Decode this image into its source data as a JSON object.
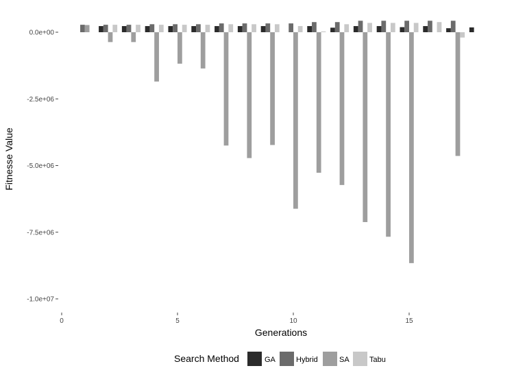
{
  "chart_data": {
    "type": "bar",
    "xlabel": "Generations",
    "ylabel": "Fitnesse Value",
    "xlim": [
      0,
      18
    ],
    "ylim": [
      -10400000,
      600000
    ],
    "x_ticks": [
      0,
      5,
      10,
      15
    ],
    "x_tick_labels": [
      "0",
      "5",
      "10",
      "15"
    ],
    "y_ticks": [
      0,
      -2500000,
      -5000000,
      -7500000,
      -10000000
    ],
    "y_tick_labels": [
      "0.0e+00",
      "-2.5e+06",
      "-5.0e+06",
      "-7.5e+06",
      "-1.0e+07"
    ],
    "grid": false,
    "legend": {
      "title": "Search Method",
      "placement": "bottom",
      "entries": [
        "GA",
        "Hybrid",
        "SA",
        "Tabu"
      ]
    },
    "colors": {
      "GA": "#2b2b2b",
      "Hybrid": "#6b6b6b",
      "SA": "#9e9e9e",
      "Tabu": "#c8c8c8"
    },
    "series": [
      {
        "name": "GA",
        "offset": -0.3,
        "x": [
          1,
          2,
          3,
          4,
          5,
          6,
          7,
          8,
          9,
          10,
          11,
          12,
          13,
          14,
          15,
          16,
          17,
          18
        ],
        "values": [
          null,
          230000,
          230000,
          230000,
          230000,
          230000,
          230000,
          230000,
          230000,
          null,
          230000,
          170000,
          230000,
          230000,
          190000,
          230000,
          150000,
          180000
        ]
      },
      {
        "name": "Hybrid",
        "offset": -0.1,
        "x": [
          1,
          2,
          3,
          4,
          5,
          6,
          7,
          8,
          9,
          10,
          11,
          12,
          13,
          14,
          15,
          16,
          17,
          18
        ],
        "values": [
          280000,
          280000,
          280000,
          300000,
          300000,
          300000,
          330000,
          330000,
          330000,
          330000,
          380000,
          380000,
          430000,
          430000,
          430000,
          430000,
          430000,
          null
        ]
      },
      {
        "name": "SA",
        "offset": 0.1,
        "x": [
          1,
          2,
          3,
          4,
          5,
          6,
          7,
          8,
          9,
          10,
          11,
          12,
          13,
          14,
          15,
          16,
          17,
          18
        ],
        "values": [
          270000,
          -370000,
          -370000,
          -1850000,
          -1180000,
          -1360000,
          -4250000,
          -4720000,
          -4230000,
          -6620000,
          -5270000,
          -5730000,
          -7120000,
          -7670000,
          -8660000,
          null,
          -4640000,
          null
        ]
      },
      {
        "name": "Tabu",
        "offset": 0.3,
        "x": [
          1,
          2,
          3,
          4,
          5,
          6,
          7,
          8,
          9,
          10,
          11,
          12,
          13,
          14,
          15,
          16,
          17,
          18
        ],
        "values": [
          null,
          280000,
          280000,
          280000,
          280000,
          280000,
          300000,
          300000,
          300000,
          230000,
          30000,
          300000,
          350000,
          350000,
          350000,
          380000,
          -200000,
          null
        ]
      }
    ],
    "bar_width": 0.2
  }
}
